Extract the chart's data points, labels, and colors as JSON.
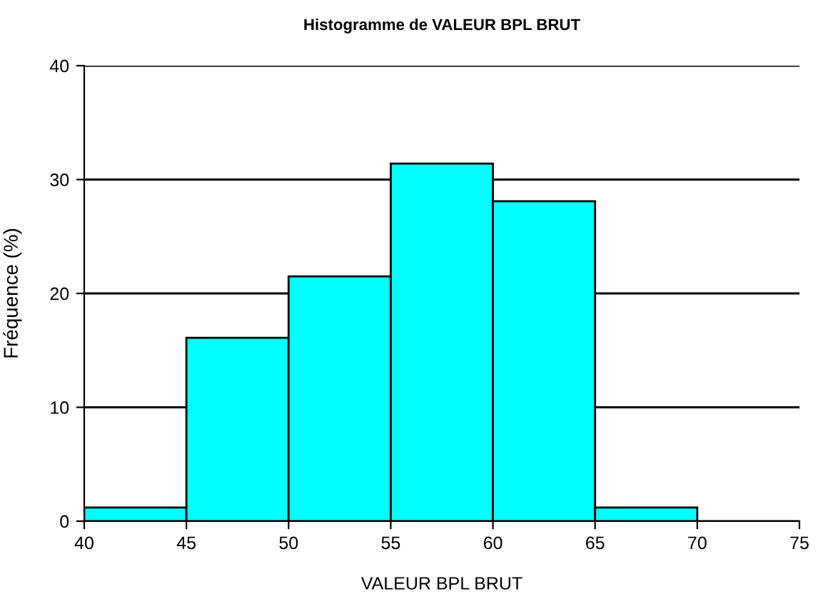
{
  "chart_data": {
    "type": "histogram",
    "title": "Histogramme de VALEUR BPL BRUT",
    "xlabel": "VALEUR BPL BRUT",
    "ylabel": "Fréquence (%)",
    "bins": [
      40,
      45,
      50,
      55,
      60,
      65,
      70,
      75
    ],
    "values": [
      1.2,
      16.1,
      21.5,
      31.4,
      28.1,
      1.2,
      0
    ],
    "color": "#00ffff",
    "xlim": [
      40,
      75
    ],
    "xticks": [
      40,
      45,
      50,
      55,
      60,
      65,
      70,
      75
    ],
    "ylim": [
      0,
      40
    ],
    "yticks": [
      0,
      10,
      20,
      30,
      40
    ],
    "grid": "y"
  }
}
